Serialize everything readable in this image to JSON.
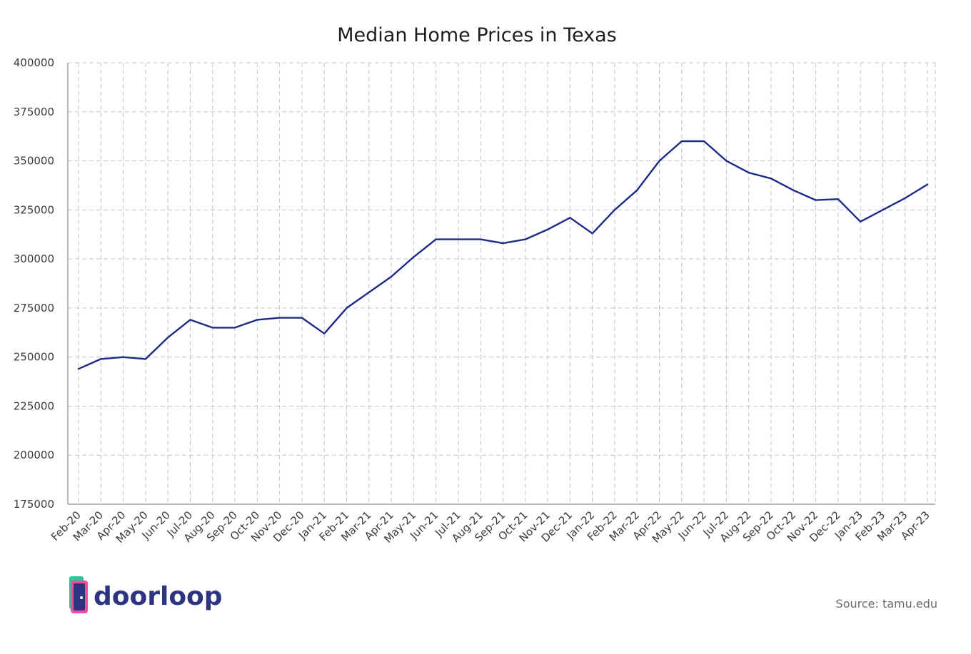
{
  "chart_data": {
    "type": "line",
    "title": "Median Home Prices in Texas",
    "xlabel": "",
    "ylabel": "",
    "x": [
      "Feb-20",
      "Mar-20",
      "Apr-20",
      "May-20",
      "Jun-20",
      "Jul-20",
      "Aug-20",
      "Sep-20",
      "Oct-20",
      "Nov-20",
      "Dec-20",
      "Jan-21",
      "Feb-21",
      "Mar-21",
      "Apr-21",
      "May-21",
      "Jun-21",
      "Jul-21",
      "Aug-21",
      "Sep-21",
      "Oct-21",
      "Nov-21",
      "Dec-21",
      "Jan-22",
      "Feb-22",
      "Mar-22",
      "Apr-22",
      "May-22",
      "Jun-22",
      "Jul-22",
      "Aug-22",
      "Sep-22",
      "Oct-22",
      "Nov-22",
      "Dec-22",
      "Jan-23",
      "Feb-23",
      "Mar-23",
      "Apr-23"
    ],
    "series": [
      {
        "values": [
          244000,
          249000,
          250000,
          249000,
          260000,
          269000,
          265000,
          265000,
          269000,
          270000,
          270000,
          262000,
          275000,
          283000,
          291000,
          301000,
          310000,
          310000,
          310000,
          308000,
          310000,
          315000,
          321000,
          313000,
          325000,
          335000,
          350000,
          360000,
          360000,
          350000,
          344000,
          341000,
          335000,
          330000,
          330500,
          319000,
          325000,
          331000,
          338000
        ],
        "color": "#1d2a86"
      }
    ],
    "yticks": [
      "400000",
      "375000",
      "350000",
      "325000",
      "300000",
      "275000",
      "250000",
      "225000",
      "200000",
      "175000"
    ],
    "ylim": [
      175000,
      400000
    ],
    "grid": true,
    "legend": "none"
  },
  "branding": {
    "logo_text": "doorloop",
    "source_text": "Source: tamu.edu"
  }
}
